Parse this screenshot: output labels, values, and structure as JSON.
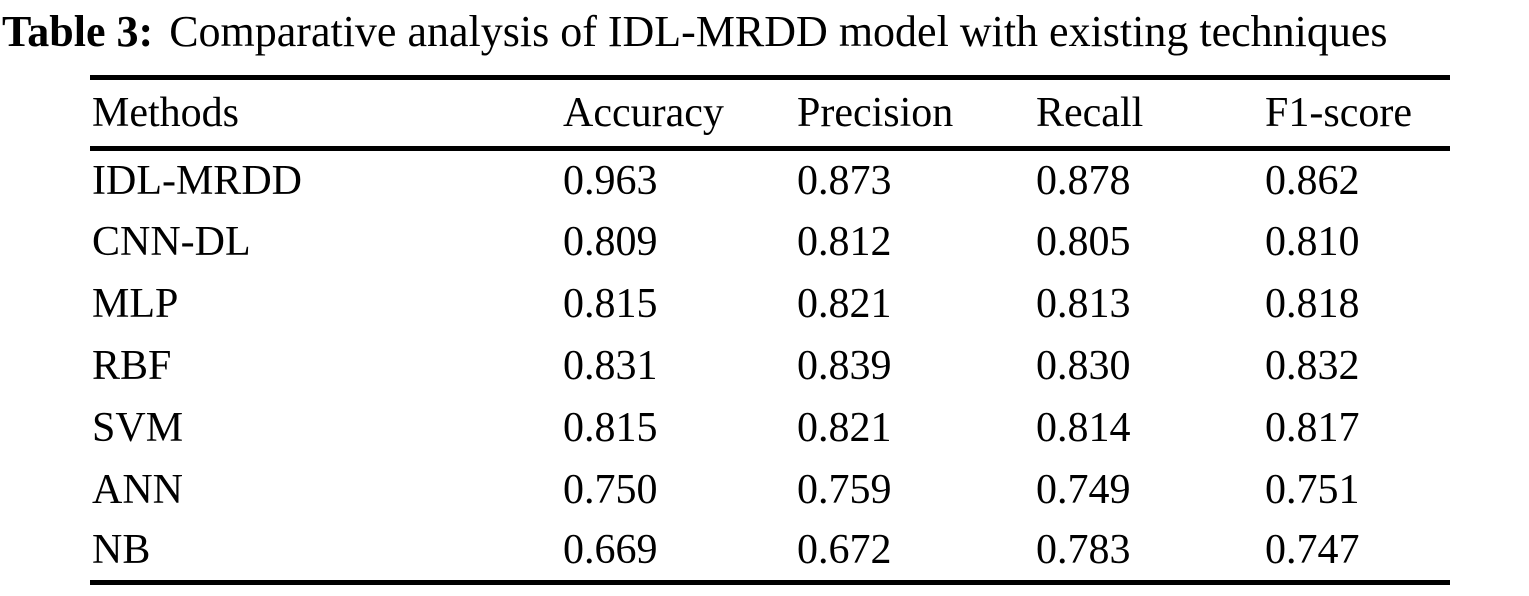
{
  "caption": {
    "label": "Table 3:",
    "text": "Comparative analysis of IDL-MRDD model with existing techniques"
  },
  "table": {
    "columns": [
      "Methods",
      "Accuracy",
      "Precision",
      "Recall",
      "F1-score"
    ],
    "rows": [
      [
        "IDL-MRDD",
        "0.963",
        "0.873",
        "0.878",
        "0.862"
      ],
      [
        "CNN-DL",
        "0.809",
        "0.812",
        "0.805",
        "0.810"
      ],
      [
        "MLP",
        "0.815",
        "0.821",
        "0.813",
        "0.818"
      ],
      [
        "RBF",
        "0.831",
        "0.839",
        "0.830",
        "0.832"
      ],
      [
        "SVM",
        "0.815",
        "0.821",
        "0.814",
        "0.817"
      ],
      [
        "ANN",
        "0.750",
        "0.759",
        "0.749",
        "0.751"
      ],
      [
        "NB",
        "0.669",
        "0.672",
        "0.783",
        "0.747"
      ]
    ]
  }
}
